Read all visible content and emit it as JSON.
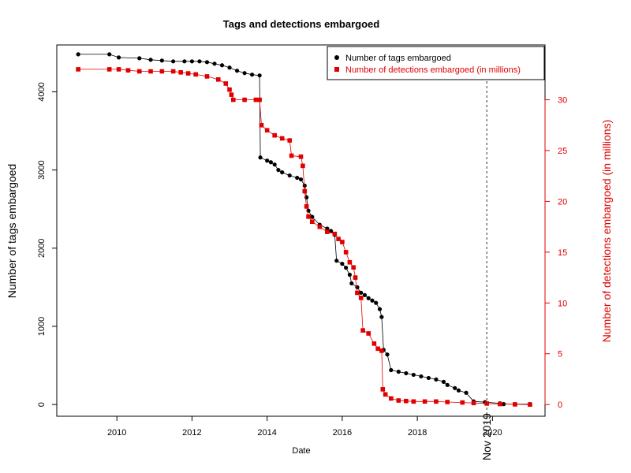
{
  "chart_data": {
    "type": "scatter",
    "title": "Tags and detections embargoed",
    "xlabel": "Date",
    "ylabel": "Number of tags embargoed",
    "ylabel_right": "Number of detections embargoed (in millions)",
    "xlim": [
      2008.4,
      2021.4
    ],
    "xticks": [
      2010,
      2012,
      2014,
      2016,
      2018,
      2020
    ],
    "ylim": [
      -150,
      4600
    ],
    "yticks": [
      0,
      1000,
      2000,
      3000,
      4000
    ],
    "ylim_right": [
      -1.15,
      35.4
    ],
    "yticks_right": [
      0,
      5,
      10,
      15,
      20,
      25,
      30
    ],
    "annotation": {
      "label": "Nov 2019",
      "x": 2019.85,
      "line_style": "dashed"
    },
    "legend_position": "top-right",
    "colors": {
      "tags": "#000000",
      "detections": "#e00000"
    },
    "series": [
      {
        "name": "Number of tags embargoed",
        "axis": "left",
        "marker": "circle",
        "color": "#000000",
        "points": [
          [
            2008.97,
            4480
          ],
          [
            2009.8,
            4480
          ],
          [
            2010.05,
            4440
          ],
          [
            2010.6,
            4430
          ],
          [
            2010.9,
            4410
          ],
          [
            2011.2,
            4400
          ],
          [
            2011.5,
            4390
          ],
          [
            2011.8,
            4390
          ],
          [
            2012.0,
            4390
          ],
          [
            2012.2,
            4390
          ],
          [
            2012.4,
            4380
          ],
          [
            2012.6,
            4360
          ],
          [
            2012.8,
            4340
          ],
          [
            2013.0,
            4310
          ],
          [
            2013.2,
            4270
          ],
          [
            2013.4,
            4240
          ],
          [
            2013.6,
            4220
          ],
          [
            2013.8,
            4210
          ],
          [
            2013.82,
            3160
          ],
          [
            2014.0,
            3120
          ],
          [
            2014.1,
            3100
          ],
          [
            2014.2,
            3070
          ],
          [
            2014.3,
            3000
          ],
          [
            2014.4,
            2970
          ],
          [
            2014.6,
            2930
          ],
          [
            2014.8,
            2900
          ],
          [
            2014.9,
            2880
          ],
          [
            2015.0,
            2800
          ],
          [
            2015.05,
            2650
          ],
          [
            2015.1,
            2480
          ],
          [
            2015.2,
            2400
          ],
          [
            2015.4,
            2300
          ],
          [
            2015.6,
            2250
          ],
          [
            2015.7,
            2220
          ],
          [
            2015.8,
            2170
          ],
          [
            2015.85,
            1840
          ],
          [
            2016.0,
            1800
          ],
          [
            2016.1,
            1750
          ],
          [
            2016.2,
            1660
          ],
          [
            2016.25,
            1550
          ],
          [
            2016.4,
            1500
          ],
          [
            2016.5,
            1430
          ],
          [
            2016.6,
            1400
          ],
          [
            2016.7,
            1360
          ],
          [
            2016.8,
            1330
          ],
          [
            2016.9,
            1300
          ],
          [
            2017.0,
            1220
          ],
          [
            2017.05,
            1120
          ],
          [
            2017.1,
            700
          ],
          [
            2017.2,
            640
          ],
          [
            2017.3,
            440
          ],
          [
            2017.5,
            420
          ],
          [
            2017.7,
            400
          ],
          [
            2017.9,
            380
          ],
          [
            2018.1,
            360
          ],
          [
            2018.3,
            340
          ],
          [
            2018.5,
            320
          ],
          [
            2018.7,
            290
          ],
          [
            2018.8,
            250
          ],
          [
            2019.0,
            210
          ],
          [
            2019.1,
            180
          ],
          [
            2019.3,
            150
          ],
          [
            2019.5,
            40
          ],
          [
            2019.8,
            30
          ],
          [
            2020.2,
            15
          ],
          [
            2020.3,
            5
          ],
          [
            2021.0,
            5
          ]
        ]
      },
      {
        "name": "Number of detections embargoed (in millions)",
        "axis": "right",
        "marker": "square",
        "color": "#e00000",
        "points": [
          [
            2008.97,
            33.0
          ],
          [
            2009.8,
            33.0
          ],
          [
            2010.05,
            33.0
          ],
          [
            2010.3,
            32.9
          ],
          [
            2010.6,
            32.8
          ],
          [
            2010.9,
            32.8
          ],
          [
            2011.2,
            32.8
          ],
          [
            2011.5,
            32.8
          ],
          [
            2011.7,
            32.7
          ],
          [
            2011.9,
            32.6
          ],
          [
            2012.1,
            32.5
          ],
          [
            2012.4,
            32.3
          ],
          [
            2012.7,
            32.0
          ],
          [
            2012.9,
            31.6
          ],
          [
            2013.0,
            31.0
          ],
          [
            2013.05,
            30.5
          ],
          [
            2013.1,
            30.0
          ],
          [
            2013.4,
            30.0
          ],
          [
            2013.7,
            30.0
          ],
          [
            2013.8,
            30.0
          ],
          [
            2013.85,
            27.5
          ],
          [
            2014.0,
            27.0
          ],
          [
            2014.2,
            26.5
          ],
          [
            2014.4,
            26.2
          ],
          [
            2014.6,
            26.0
          ],
          [
            2014.65,
            24.5
          ],
          [
            2014.9,
            24.4
          ],
          [
            2014.95,
            23.5
          ],
          [
            2015.0,
            21.0
          ],
          [
            2015.05,
            19.5
          ],
          [
            2015.1,
            18.5
          ],
          [
            2015.2,
            18.0
          ],
          [
            2015.4,
            17.5
          ],
          [
            2015.6,
            17.0
          ],
          [
            2015.8,
            16.8
          ],
          [
            2015.9,
            16.3
          ],
          [
            2016.0,
            16.0
          ],
          [
            2016.1,
            15.0
          ],
          [
            2016.2,
            14.0
          ],
          [
            2016.3,
            13.5
          ],
          [
            2016.35,
            12.5
          ],
          [
            2016.4,
            11.0
          ],
          [
            2016.5,
            10.5
          ],
          [
            2016.55,
            7.3
          ],
          [
            2016.7,
            7.0
          ],
          [
            2016.85,
            6.0
          ],
          [
            2016.95,
            5.5
          ],
          [
            2017.05,
            5.3
          ],
          [
            2017.08,
            1.5
          ],
          [
            2017.15,
            1.0
          ],
          [
            2017.3,
            0.6
          ],
          [
            2017.5,
            0.4
          ],
          [
            2017.7,
            0.35
          ],
          [
            2017.9,
            0.3
          ],
          [
            2018.2,
            0.3
          ],
          [
            2018.5,
            0.3
          ],
          [
            2018.8,
            0.25
          ],
          [
            2019.2,
            0.2
          ],
          [
            2019.5,
            0.15
          ],
          [
            2019.85,
            0.1
          ],
          [
            2020.2,
            0.05
          ],
          [
            2020.6,
            0.02
          ],
          [
            2021.0,
            0.0
          ]
        ]
      }
    ]
  }
}
